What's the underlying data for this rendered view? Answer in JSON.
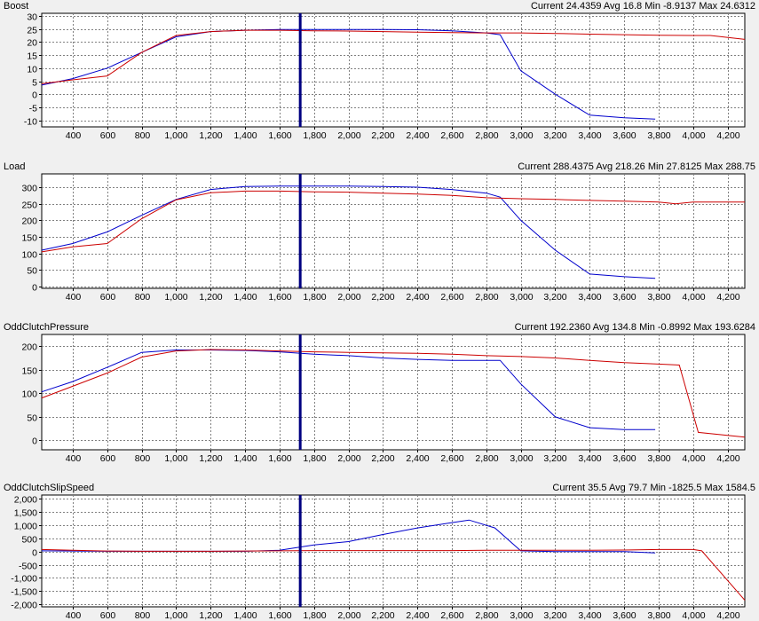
{
  "x_axis": {
    "min": 220,
    "max": 4300,
    "ticks": [
      400,
      600,
      800,
      1000,
      1200,
      1400,
      1600,
      1800,
      2000,
      2200,
      2400,
      2600,
      2800,
      3000,
      3200,
      3400,
      3600,
      3800,
      4000,
      4200
    ],
    "tick_labels": [
      "400",
      "600",
      "800",
      "1,000",
      "1,200",
      "1,400",
      "1,600",
      "1,800",
      "2,000",
      "2,200",
      "2,400",
      "2,600",
      "2,800",
      "3,000",
      "3,200",
      "3,400",
      "3,600",
      "3,800",
      "4,000",
      "4,200"
    ]
  },
  "cursor_x": 1720,
  "colors": {
    "series_a": "#0000cc",
    "series_b": "#cc0000",
    "cursor": "#000080",
    "grid": "#808080",
    "plot_bg": "#ffffff"
  },
  "panels": [
    {
      "name": "Boost",
      "stats": {
        "current_label": "Current",
        "current": "24.4359",
        "avg_label": "Avg",
        "avg": "16.8",
        "min_label": "Min",
        "min": "-8.9137",
        "max_label": "Max",
        "max": "24.6312"
      }
    },
    {
      "name": "Load",
      "stats": {
        "current_label": "Current",
        "current": "288.4375",
        "avg_label": "Avg",
        "avg": "218.26",
        "min_label": "Min",
        "min": "27.8125",
        "max_label": "Max",
        "max": "288.75"
      }
    },
    {
      "name": "OddClutchPressure",
      "stats": {
        "current_label": "Current",
        "current": "192.2360",
        "avg_label": "Avg",
        "avg": "134.8",
        "min_label": "Min",
        "min": "-0.8992",
        "max_label": "Max",
        "max": "193.6284"
      }
    },
    {
      "name": "OddClutchSlipSpeed",
      "stats": {
        "current_label": "Current",
        "current": "35.5",
        "avg_label": "Avg",
        "avg": "79.7",
        "min_label": "Min",
        "min": "-1825.5",
        "max_label": "Max",
        "max": "1584.5"
      }
    }
  ],
  "chart_data": [
    {
      "type": "line",
      "title": "Boost",
      "ylim": [
        -12.5,
        31
      ],
      "yticks": [
        -10,
        -5,
        0,
        5,
        10,
        15,
        20,
        25,
        30
      ],
      "ytick_labels": [
        "-10",
        "-5",
        "0",
        "5",
        "10",
        "15",
        "20",
        "25",
        "30"
      ],
      "grid": true,
      "series": [
        {
          "x": [
            220,
            400,
            600,
            800,
            1000,
            1200,
            1400,
            1600,
            1800,
            2000,
            2200,
            2400,
            2600,
            2800,
            2880,
            3000,
            3200,
            3400,
            3600,
            3780
          ],
          "y": [
            3.5,
            6,
            10,
            16,
            22,
            24,
            24.5,
            24.8,
            24.8,
            24.8,
            24.8,
            24.7,
            24.3,
            23.5,
            22.8,
            9,
            0,
            -8,
            -9,
            -9.5
          ]
        },
        {
          "x": [
            220,
            400,
            600,
            800,
            1000,
            1200,
            1400,
            1600,
            1800,
            2000,
            2200,
            2400,
            2600,
            2800,
            3000,
            3200,
            3400,
            3600,
            3800,
            4000,
            4100,
            4300
          ],
          "y": [
            4,
            5.5,
            7,
            16,
            22.5,
            24,
            24.5,
            24.5,
            24.3,
            24.2,
            24,
            23.8,
            23.6,
            23.5,
            23.5,
            23.3,
            23,
            22.8,
            22.6,
            22.5,
            22.5,
            21
          ]
        }
      ]
    },
    {
      "type": "line",
      "title": "Load",
      "ylim": [
        -5,
        340
      ],
      "yticks": [
        0,
        50,
        100,
        150,
        200,
        250,
        300
      ],
      "ytick_labels": [
        "0",
        "50",
        "100",
        "150",
        "200",
        "250",
        "300"
      ],
      "grid": true,
      "series": [
        {
          "x": [
            220,
            400,
            600,
            800,
            1000,
            1200,
            1400,
            1600,
            1800,
            2000,
            2200,
            2400,
            2600,
            2800,
            2880,
            3000,
            3200,
            3400,
            3600,
            3780
          ],
          "y": [
            110,
            130,
            165,
            215,
            263,
            293,
            302,
            303,
            303,
            303,
            302,
            300,
            293,
            282,
            270,
            200,
            110,
            38,
            30,
            25
          ]
        },
        {
          "x": [
            220,
            400,
            600,
            800,
            1000,
            1200,
            1400,
            1600,
            1800,
            2000,
            2200,
            2400,
            2600,
            2800,
            3000,
            3200,
            3400,
            3600,
            3800,
            3900,
            4000,
            4300
          ],
          "y": [
            105,
            120,
            130,
            205,
            262,
            283,
            288,
            288,
            286,
            285,
            282,
            279,
            275,
            268,
            265,
            263,
            260,
            258,
            255,
            250,
            255,
            255
          ]
        }
      ]
    },
    {
      "type": "line",
      "title": "OddClutchPressure",
      "ylim": [
        -20,
        225
      ],
      "yticks": [
        0,
        50,
        100,
        150,
        200
      ],
      "ytick_labels": [
        "0",
        "50",
        "100",
        "150",
        "200"
      ],
      "grid": true,
      "series": [
        {
          "x": [
            220,
            400,
            600,
            800,
            1000,
            1200,
            1400,
            1600,
            1800,
            2000,
            2200,
            2400,
            2600,
            2800,
            2880,
            3000,
            3200,
            3400,
            3600,
            3780
          ],
          "y": [
            103,
            125,
            155,
            187,
            192,
            192,
            191,
            188,
            183,
            180,
            175,
            172,
            170,
            170,
            170,
            120,
            50,
            27,
            23,
            23
          ]
        },
        {
          "x": [
            220,
            400,
            600,
            800,
            1000,
            1200,
            1400,
            1600,
            1800,
            2000,
            2200,
            2400,
            2600,
            2800,
            3000,
            3200,
            3400,
            3600,
            3800,
            3920,
            4030,
            4300
          ],
          "y": [
            90,
            115,
            143,
            177,
            190,
            193,
            192,
            190,
            188,
            187,
            186,
            185,
            183,
            180,
            178,
            175,
            170,
            165,
            162,
            160,
            17,
            7
          ]
        }
      ]
    },
    {
      "type": "line",
      "title": "OddClutchSlipSpeed",
      "ylim": [
        -2100,
        2150
      ],
      "yticks": [
        -2000,
        -1500,
        -1000,
        -500,
        0,
        500,
        1000,
        1500,
        2000
      ],
      "ytick_labels": [
        "-2,000",
        "-1,500",
        "-1,000",
        "-500",
        "0",
        "500",
        "1,000",
        "1,500",
        "2,000"
      ],
      "grid": true,
      "series": [
        {
          "x": [
            220,
            400,
            600,
            800,
            1000,
            1200,
            1400,
            1600,
            1700,
            1800,
            2000,
            2200,
            2400,
            2600,
            2700,
            2850,
            3000,
            3200,
            3400,
            3600,
            3780
          ],
          "y": [
            30,
            20,
            10,
            10,
            10,
            10,
            10,
            50,
            150,
            250,
            380,
            650,
            900,
            1100,
            1200,
            900,
            30,
            0,
            0,
            0,
            -50
          ]
        },
        {
          "x": [
            220,
            400,
            600,
            800,
            1000,
            1200,
            1400,
            1600,
            1800,
            2000,
            2200,
            2400,
            2600,
            2800,
            3000,
            3200,
            3400,
            3600,
            3800,
            4000,
            4050,
            4300
          ],
          "y": [
            80,
            50,
            20,
            10,
            10,
            10,
            20,
            30,
            40,
            40,
            40,
            40,
            40,
            50,
            50,
            50,
            50,
            60,
            80,
            80,
            30,
            -1850
          ]
        }
      ]
    }
  ]
}
